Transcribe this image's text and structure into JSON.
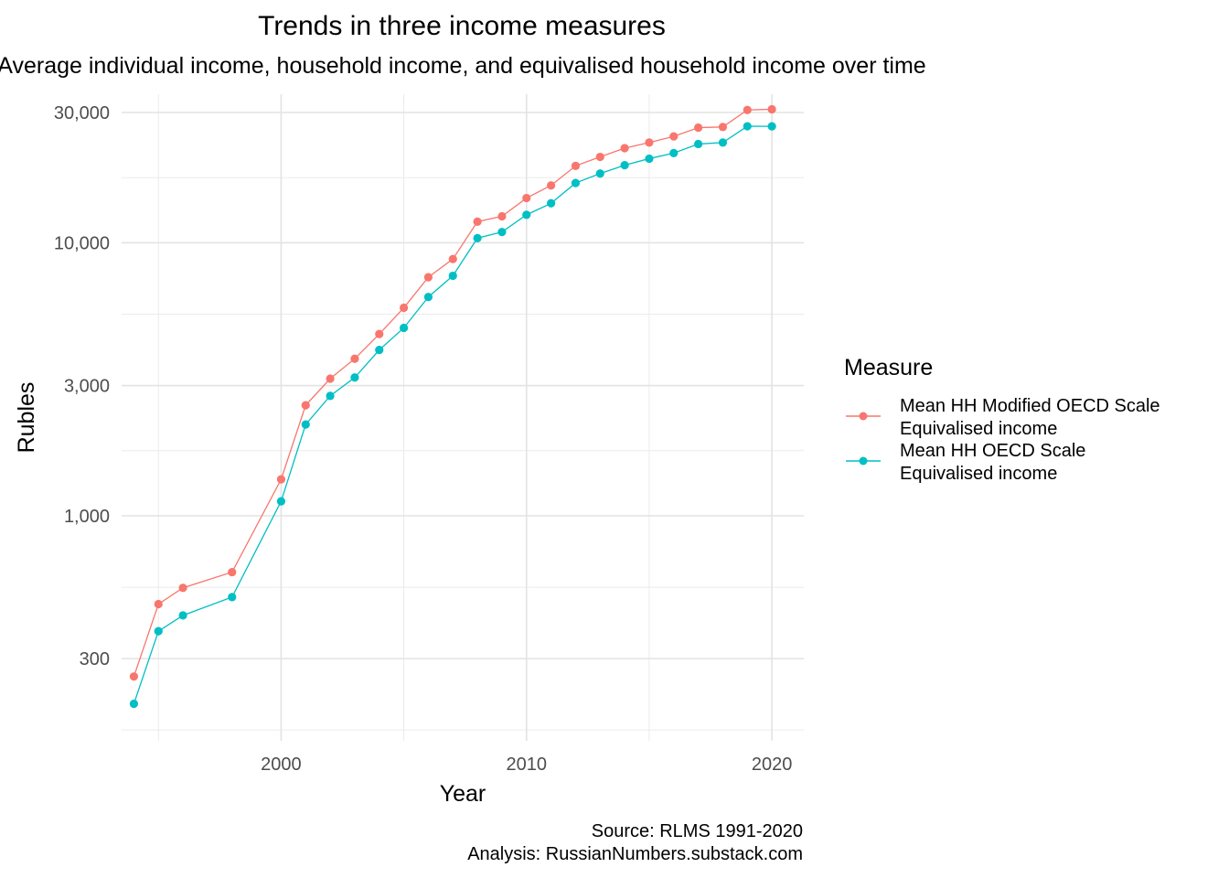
{
  "chart_data": {
    "type": "line",
    "title": "Trends in three income measures",
    "subtitle": "Average individual income, household income, and equivalised household income over time",
    "xlabel": "Year",
    "ylabel": "Rubles",
    "y_scale": "log",
    "ylim": [
      150,
      35000
    ],
    "xlim": [
      1993.5,
      2021.3
    ],
    "x_ticks": [
      2000,
      2010,
      2020
    ],
    "x_tick_labels": [
      "2000",
      "2010",
      "2020"
    ],
    "y_ticks": [
      300,
      1000,
      3000,
      10000,
      30000
    ],
    "y_tick_labels": [
      "300",
      "1,000",
      "3,000",
      "10,000",
      "30,000"
    ],
    "grid": true,
    "legend_title": "Measure",
    "legend_position": "right",
    "x": [
      1994,
      1995,
      1996,
      1998,
      2000,
      2001,
      2002,
      2003,
      2004,
      2005,
      2006,
      2007,
      2008,
      2009,
      2010,
      2011,
      2012,
      2013,
      2014,
      2015,
      2016,
      2017,
      2018,
      2019,
      2020
    ],
    "series": [
      {
        "name": "Mean HH Modified OECD Scale\nEquivalised income",
        "color": "#F8766D",
        "values": [
          258,
          475,
          545,
          622,
          1360,
          2540,
          3180,
          3760,
          4630,
          5780,
          7480,
          8720,
          11950,
          12500,
          14580,
          16220,
          19120,
          20630,
          22200,
          23280,
          24520,
          26400,
          26550,
          30640,
          30830
        ]
      },
      {
        "name": "Mean HH OECD Scale\nEquivalised income",
        "color": "#00BFC4",
        "values": [
          205,
          378,
          432,
          504,
          1130,
          2160,
          2750,
          3210,
          4050,
          4880,
          6330,
          7570,
          10400,
          10950,
          12660,
          13950,
          16550,
          17930,
          19230,
          20330,
          21300,
          23000,
          23280,
          26710,
          26700
        ]
      }
    ],
    "caption": "Source: RLMS 1991-2020\nAnalysis: RussianNumbers.substack.com"
  }
}
